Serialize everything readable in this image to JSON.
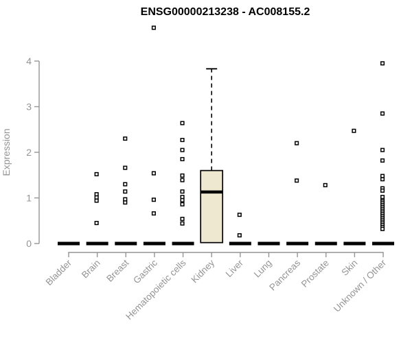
{
  "colors": {
    "axis": "#949494",
    "tick_label": "#949494",
    "box_fill": "#EEE8D1",
    "box_stroke": "#000000",
    "point_stroke": "#000000",
    "point_fill": "#ffffff",
    "title": "#000000",
    "background": "#ffffff"
  },
  "chart_data": {
    "type": "boxplot",
    "title": "ENSG00000213238 - AC008155.2",
    "xlabel": "",
    "ylabel": "Expression",
    "ylim": [
      0,
      4
    ],
    "yticks": [
      0,
      1,
      2,
      3,
      4
    ],
    "grid": false,
    "legend": "none",
    "categories": [
      "Bladder",
      "Brain",
      "Breast",
      "Gastric",
      "Hematopoietic cells",
      "Kidney",
      "Liver",
      "Lung",
      "Pancreas",
      "Prostate",
      "Skin",
      "Unknown / Other"
    ],
    "boxes": [
      {
        "category": "Bladder",
        "q1": 0,
        "median": 0,
        "q3": 0,
        "whisker_low": 0,
        "whisker_high": 0,
        "outliers": []
      },
      {
        "category": "Brain",
        "q1": 0,
        "median": 0,
        "q3": 0,
        "whisker_low": 0,
        "whisker_high": 0,
        "outliers": [
          1.52,
          1.08,
          1.01,
          0.94,
          0.45
        ]
      },
      {
        "category": "Breast",
        "q1": 0,
        "median": 0,
        "q3": 0,
        "whisker_low": 0,
        "whisker_high": 0,
        "outliers": [
          2.3,
          1.66,
          1.3,
          1.14,
          0.97,
          0.9
        ]
      },
      {
        "category": "Gastric",
        "q1": 0,
        "median": 0,
        "q3": 0,
        "whisker_low": 0,
        "whisker_high": 0,
        "outliers": [
          4.73,
          1.54,
          0.96,
          0.66
        ]
      },
      {
        "category": "Hematopoietic cells",
        "q1": 0,
        "median": 0,
        "q3": 0,
        "whisker_low": 0,
        "whisker_high": 0,
        "outliers": [
          2.64,
          2.27,
          2.05,
          1.85,
          1.49,
          1.39,
          1.14,
          1.02,
          0.95,
          0.86,
          0.54,
          0.44
        ]
      },
      {
        "category": "Kidney",
        "q1": 0.02,
        "median": 1.13,
        "q3": 1.6,
        "whisker_low": 0.02,
        "whisker_high": 3.83,
        "outliers": []
      },
      {
        "category": "Liver",
        "q1": 0,
        "median": 0,
        "q3": 0,
        "whisker_low": 0,
        "whisker_high": 0,
        "outliers": [
          0.63,
          0.18
        ]
      },
      {
        "category": "Lung",
        "q1": 0,
        "median": 0,
        "q3": 0,
        "whisker_low": 0,
        "whisker_high": 0,
        "outliers": []
      },
      {
        "category": "Pancreas",
        "q1": 0,
        "median": 0,
        "q3": 0,
        "whisker_low": 0,
        "whisker_high": 0,
        "outliers": [
          2.2,
          1.38
        ]
      },
      {
        "category": "Prostate",
        "q1": 0,
        "median": 0,
        "q3": 0,
        "whisker_low": 0,
        "whisker_high": 0,
        "outliers": [
          1.28
        ]
      },
      {
        "category": "Skin",
        "q1": 0,
        "median": 0,
        "q3": 0,
        "whisker_low": 0,
        "whisker_high": 0,
        "outliers": [
          2.47
        ]
      },
      {
        "category": "Unknown / Other",
        "q1": 0,
        "median": 0,
        "q3": 0,
        "whisker_low": 0,
        "whisker_high": 0,
        "outliers": [
          3.95,
          2.85,
          2.05,
          1.82,
          1.48,
          1.41,
          1.21,
          1.16,
          1.02,
          0.95,
          0.92,
          0.88,
          0.84,
          0.8,
          0.76,
          0.72,
          0.68,
          0.64,
          0.6,
          0.56,
          0.52,
          0.48,
          0.44,
          0.4,
          0.36,
          0.32
        ]
      }
    ]
  }
}
